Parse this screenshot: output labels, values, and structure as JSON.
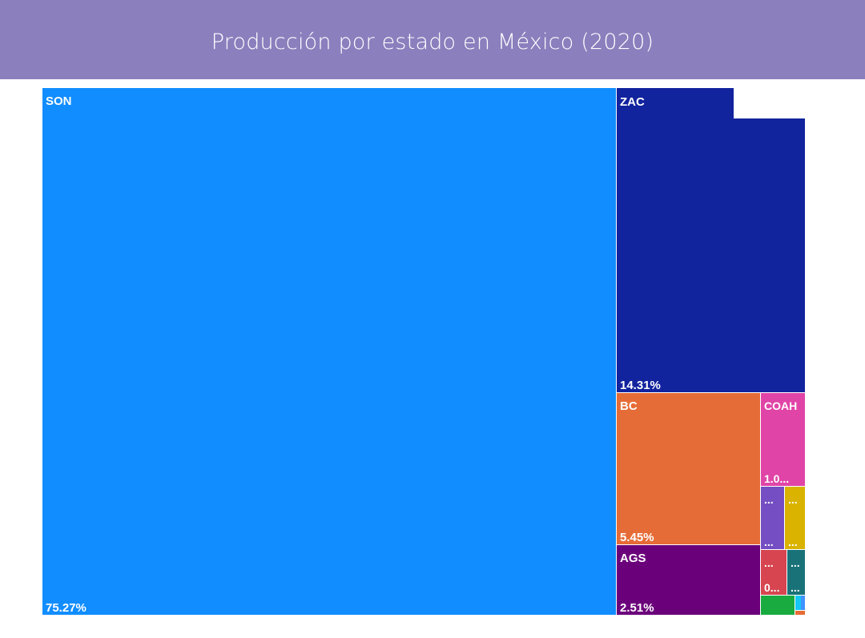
{
  "header": {
    "title": "Producción por estado en México (2020)"
  },
  "chart_data": {
    "type": "treemap",
    "title": "Producción por estado en México (2020)",
    "unit": "%",
    "items": [
      {
        "name": "SON",
        "value": 75.27,
        "label": "SON",
        "value_label": "75.27%",
        "color": "#118dff"
      },
      {
        "name": "ZAC",
        "value": 14.31,
        "label": "ZAC",
        "value_label": "14.31%",
        "color": "#12239e"
      },
      {
        "name": "BC",
        "value": 5.45,
        "label": "BC",
        "value_label": "5.45%",
        "color": "#e66c37"
      },
      {
        "name": "AGS",
        "value": 2.51,
        "label": "AGS",
        "value_label": "2.51%",
        "color": "#6b007b"
      },
      {
        "name": "COAH",
        "value": 1.0,
        "label": "COAH",
        "value_label": "1.0...",
        "color": "#e044a7"
      },
      {
        "name": "",
        "value": 0.34,
        "label": "...",
        "value_label": "...",
        "color": "#744ec2"
      },
      {
        "name": "",
        "value": 0.32,
        "label": "...",
        "value_label": "...",
        "color": "#d9b300"
      },
      {
        "name": "",
        "value": 0.27,
        "label": "...",
        "value_label": "0...",
        "color": "#d64550"
      },
      {
        "name": "",
        "value": 0.2,
        "label": "...",
        "value_label": "...",
        "color": "#197278"
      },
      {
        "name": "",
        "value": 0.15,
        "label": "",
        "value_label": "",
        "color": "#1aab40"
      },
      {
        "name": "",
        "value": 0.02,
        "label": "",
        "value_label": "",
        "color": "#15c6f4"
      },
      {
        "name": "",
        "value": 0.01,
        "label": "",
        "value_label": "",
        "color": "#4092ff"
      },
      {
        "name": "",
        "value": 0.01,
        "label": "",
        "value_label": "",
        "color": "#e66c37"
      }
    ]
  }
}
